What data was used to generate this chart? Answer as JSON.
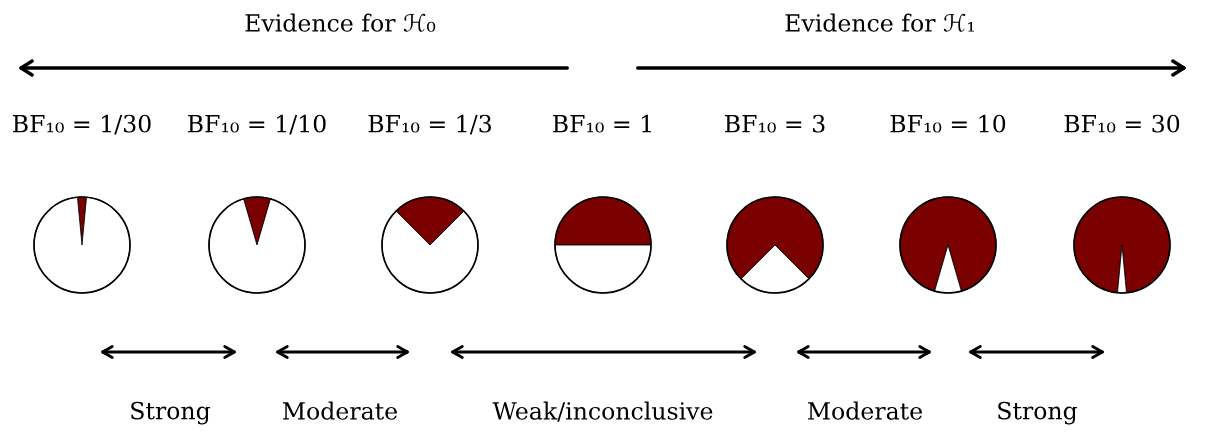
{
  "chart_data": [
    {
      "type": "other",
      "annotations": [
        "Evidence for ℋ₀",
        "Evidence for ℋ₁",
        "Strong",
        "Moderate",
        "Weak/inconclusive",
        "Moderate",
        "Strong"
      ]
    },
    {
      "type": "pie",
      "title": "BF₁₀ = 1/30",
      "categories": [
        null,
        null
      ],
      "values": [
        3,
        97
      ],
      "colors": [
        "#7b0000",
        "#ffffff"
      ]
    },
    {
      "type": "pie",
      "title": "BF₁₀ = 1/10",
      "categories": [
        null,
        null
      ],
      "values": [
        9,
        91
      ],
      "colors": [
        "#7b0000",
        "#ffffff"
      ]
    },
    {
      "type": "pie",
      "title": "BF₁₀ = 1/3",
      "categories": [
        null,
        null
      ],
      "values": [
        25,
        75
      ],
      "colors": [
        "#7b0000",
        "#ffffff"
      ]
    },
    {
      "type": "pie",
      "title": "BF₁₀ = 1",
      "categories": [
        null,
        null
      ],
      "values": [
        50,
        50
      ],
      "colors": [
        "#7b0000",
        "#ffffff"
      ]
    },
    {
      "type": "pie",
      "title": "BF₁₀ = 3",
      "categories": [
        null,
        null
      ],
      "values": [
        75,
        25
      ],
      "colors": [
        "#7b0000",
        "#ffffff"
      ]
    },
    {
      "type": "pie",
      "title": "BF₁₀ = 10",
      "categories": [
        null,
        null
      ],
      "values": [
        91,
        9
      ],
      "colors": [
        "#7b0000",
        "#ffffff"
      ]
    },
    {
      "type": "pie",
      "title": "BF₁₀ = 30",
      "categories": [
        null,
        null
      ],
      "values": [
        97,
        3
      ],
      "colors": [
        "#7b0000",
        "#ffffff"
      ]
    }
  ]
}
